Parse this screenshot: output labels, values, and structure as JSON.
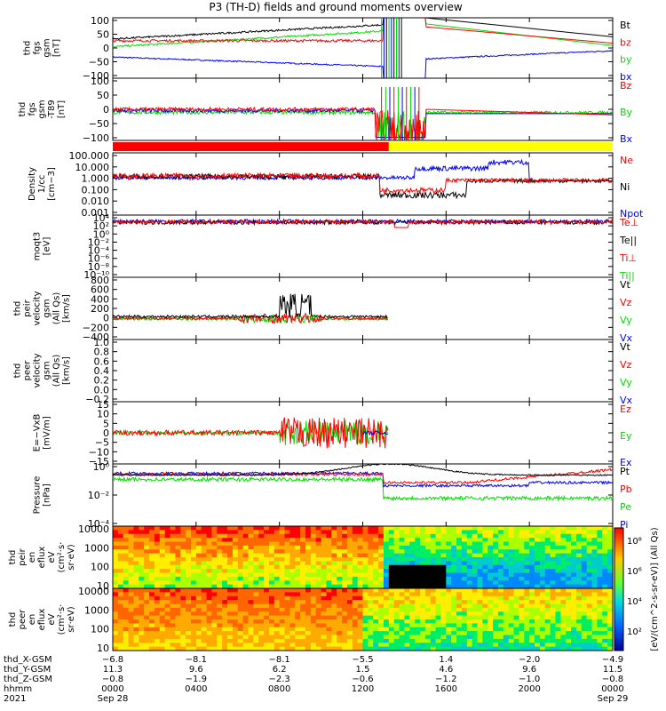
{
  "title": "P3 (TH-D) fields and ground moments overview",
  "colors": {
    "black": "#000000",
    "red": "#ff0000",
    "green": "#00dd00",
    "blue": "#0000ff",
    "yellow": "#ffff00"
  },
  "chart_data": [
    {
      "type": "line",
      "ylabel": [
        "thd",
        "fgs",
        "gsm",
        "[nT]"
      ],
      "yticks": [
        "100",
        "50",
        "0",
        "−50",
        "−100"
      ],
      "ylim": [
        -100,
        100
      ],
      "legend": [
        {
          "label": "Bt",
          "color": "#000000"
        },
        {
          "label": "bz",
          "color": "#ff0000"
        },
        {
          "label": "by",
          "color": "#00dd00"
        },
        {
          "label": "bx",
          "color": "#0000ff"
        }
      ]
    },
    {
      "type": "line",
      "ylabel": [
        "thd",
        "fgs",
        "gsm",
        "-T89",
        "[nT]"
      ],
      "yticks": [
        "100",
        "50",
        "0",
        "−50",
        "−100"
      ],
      "ylim": [
        -120,
        100
      ],
      "legend": [
        {
          "label": "Bz",
          "color": "#ff0000"
        },
        {
          "label": "By",
          "color": "#00dd00"
        },
        {
          "label": "Bx",
          "color": "#0000ff"
        }
      ]
    },
    {
      "type": "bar",
      "note": "region bar",
      "segments": [
        {
          "from": "0000",
          "to": "1315",
          "color": "#ff0000"
        },
        {
          "from": "1315",
          "to": "2400",
          "color": "#ffff00"
        }
      ]
    },
    {
      "type": "line",
      "scale": "log",
      "ylabel": [
        "Density",
        "1/cc",
        "[cm−3]"
      ],
      "yticks": [
        "100.000",
        "10.000",
        "1.000",
        "0.100",
        "0.010",
        "0.001"
      ],
      "ylim": [
        0.0005,
        300
      ],
      "legend": [
        {
          "label": "Ne",
          "color": "#ff0000"
        },
        {
          "label": "Ni",
          "color": "#000000"
        },
        {
          "label": "Npot",
          "color": "#0000ff"
        }
      ]
    },
    {
      "type": "line",
      "scale": "log",
      "ylabel": [
        "moqt3",
        "[eV]"
      ],
      "yticks": [
        "10⁴",
        "10²",
        "10⁰",
        "10⁻²",
        "10⁻⁴",
        "10⁻⁶",
        "10⁻⁸",
        "10⁻¹⁰"
      ],
      "ylim": [
        "1e-10",
        "1e4"
      ],
      "legend": [
        {
          "label": "Te⊥",
          "color": "#ff0000"
        },
        {
          "label": "Te||",
          "color": "#000000"
        },
        {
          "label": "Ti⊥",
          "color": "#ff0000"
        },
        {
          "label": "Ti||",
          "color": "#00dd00"
        }
      ]
    },
    {
      "type": "line",
      "ylabel": [
        "thd",
        "peir",
        "velocity",
        "gsm",
        "(All Qs)",
        "[km/s]"
      ],
      "yticks": [
        "800",
        "600",
        "400",
        "200",
        "0",
        "−200",
        "−400"
      ],
      "ylim": [
        -400,
        800
      ],
      "legend": [
        {
          "label": "Vt",
          "color": "#000000"
        },
        {
          "label": "Vz",
          "color": "#ff0000"
        },
        {
          "label": "Vy",
          "color": "#00dd00"
        },
        {
          "label": "Vx",
          "color": "#0000ff"
        }
      ]
    },
    {
      "type": "line",
      "ylabel": [
        "thd",
        "peer",
        "velocity",
        "gsm",
        "(All Qs)",
        "[km/s]"
      ],
      "yticks": [
        "1.0",
        "0.8",
        "0.6",
        "0.4",
        "0.2",
        "0.0",
        "−0.2"
      ],
      "ylim": [
        -0.2,
        1.0
      ],
      "legend": [
        {
          "label": "Vt",
          "color": "#000000"
        },
        {
          "label": "Vz",
          "color": "#ff0000"
        },
        {
          "label": "Vy",
          "color": "#00dd00"
        },
        {
          "label": "Vx",
          "color": "#0000ff"
        }
      ]
    },
    {
      "type": "line",
      "ylabel": [
        "E=−VxB",
        "[mV/m]"
      ],
      "yticks": [
        "15",
        "10",
        "5",
        "0",
        "−5",
        "−10",
        "−15"
      ],
      "ylim": [
        -15,
        15
      ],
      "legend": [
        {
          "label": "Ez",
          "color": "#ff0000"
        },
        {
          "label": "Ey",
          "color": "#00dd00"
        },
        {
          "label": "Ex",
          "color": "#0000ff"
        }
      ]
    },
    {
      "type": "line",
      "scale": "log",
      "ylabel": [
        "Pressure",
        "[nPa]"
      ],
      "yticks": [
        "10⁰",
        "10⁻²",
        "10⁻⁴"
      ],
      "ylim": [
        "1e-6",
        "3"
      ],
      "legend": [
        {
          "label": "Pt",
          "color": "#000000"
        },
        {
          "label": "Pb",
          "color": "#ff0000"
        },
        {
          "label": "Pe",
          "color": "#00dd00"
        },
        {
          "label": "Pi",
          "color": "#0000ff"
        }
      ]
    },
    {
      "type": "heatmap",
      "ylabel": [
        "thd",
        "peir",
        "en",
        "eflux",
        "eV",
        "(cm²·s·",
        "sr·eV)"
      ],
      "yticks": [
        "10000",
        "1000",
        "100",
        "10"
      ]
    },
    {
      "type": "heatmap",
      "ylabel": [
        "thd",
        "peer",
        "en",
        "eflux",
        "eV",
        "(cm²·s·",
        "sr·eV)"
      ],
      "yticks": [
        "10000",
        "1000",
        "100",
        "10"
      ]
    }
  ],
  "colorbar": {
    "label": "[eV/(cm^2-s-sr-eV)] (All Qs)",
    "ticks": [
      "10⁸",
      "10⁶",
      "10⁴",
      "10²"
    ]
  },
  "ephemeris": {
    "rows": [
      {
        "label": "thd_X-GSM",
        "values": [
          "−6.8",
          "−8.1",
          "−8.1",
          "−5.5",
          "1.4",
          "−2.0",
          "−4.9"
        ]
      },
      {
        "label": "thd_Y-GSM",
        "values": [
          "11.3",
          "9.6",
          "6.2",
          "1.5",
          "4.6",
          "9.6",
          "11.5"
        ]
      },
      {
        "label": "thd_Z-GSM",
        "values": [
          "−0.8",
          "−1.9",
          "−2.3",
          "−0.6",
          "−1.2",
          "−1.0",
          "−0.8"
        ]
      },
      {
        "label": "hhmm",
        "values": [
          "0000",
          "0400",
          "0800",
          "1200",
          "1600",
          "2000",
          "0000"
        ]
      },
      {
        "label": "2021",
        "values": [
          "Sep 28",
          "",
          "",
          "",
          "",
          "",
          "Sep 29"
        ]
      }
    ]
  }
}
